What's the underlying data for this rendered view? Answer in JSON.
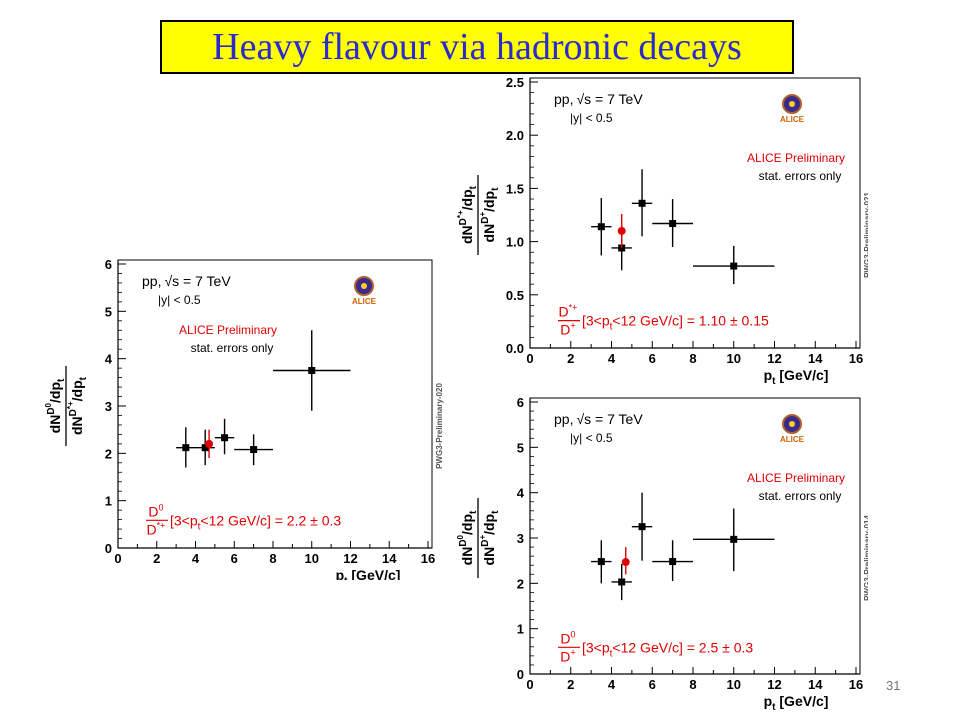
{
  "slide": {
    "title": "Heavy flavour via hadronic decays",
    "page_number": "31"
  },
  "colors": {
    "title_bg": "#ffff00",
    "title_text": "#2a2ad0",
    "red": "#e00000",
    "black": "#000000"
  },
  "chart_data": [
    {
      "type": "scatter",
      "panel": "left",
      "xlabel_main": "p",
      "xlabel_sub": "t",
      "xlabel_unit": " [GeV/c]",
      "ylabel_num": "dN",
      "ylabel_num_sup": "D",
      "ylabel_num_sup2": "0",
      "ylabel_num_tail": "/dp",
      "ylabel_num_tail_sub": "t",
      "ylabel_den": "dN",
      "ylabel_den_sup": "D",
      "ylabel_den_sup2": "*+",
      "ylabel_den_tail": "/dp",
      "ylabel_den_tail_sub": "t",
      "xlim": [
        0,
        16
      ],
      "ylim": [
        0,
        6
      ],
      "xticks": [
        "0",
        "2",
        "4",
        "6",
        "8",
        "10",
        "12",
        "14",
        "16"
      ],
      "yticks": [
        "0",
        "1",
        "2",
        "3",
        "4",
        "5",
        "6"
      ],
      "text_energy": "pp,",
      "text_sqrt": "√s = 7 TeV",
      "text_rapidity": "|y| < 0.5",
      "text_prelim": "ALICE Preliminary",
      "text_stat": "stat. errors only",
      "logo_text": "ALICE",
      "side_label": "PWG3-Preliminary-020",
      "ratio_num": "D",
      "ratio_num_sup": "0",
      "ratio_den": "D",
      "ratio_den_sup": "*+",
      "ratio_text": " [3<p",
      "ratio_text_sub": "t",
      "ratio_text_tail": "<12 GeV/c] = 2.2 ± 0.3",
      "series": [
        {
          "x": [
            3.5,
            4.5,
            5.5,
            7.0,
            10.0
          ],
          "xlow": [
            3.0,
            4.0,
            5.0,
            6.0,
            8.0
          ],
          "xhigh": [
            4.0,
            5.0,
            6.0,
            8.0,
            12.0
          ],
          "y": [
            2.12,
            2.12,
            2.33,
            2.08,
            3.75
          ],
          "ylow": [
            1.7,
            1.75,
            1.98,
            1.75,
            2.9
          ],
          "yhigh": [
            2.55,
            2.5,
            2.73,
            2.4,
            4.6
          ]
        }
      ],
      "average_point": {
        "x": 4.7,
        "y": 2.2,
        "ylow": 1.9,
        "yhigh": 2.5
      }
    },
    {
      "type": "scatter",
      "panel": "top-right",
      "xlabel_main": "p",
      "xlabel_sub": "t",
      "xlabel_unit": " [GeV/c]",
      "ylabel_num": "dN",
      "ylabel_num_sup": "D",
      "ylabel_num_sup2": "*+",
      "ylabel_num_tail": "/dp",
      "ylabel_num_tail_sub": "t",
      "ylabel_den": "dN",
      "ylabel_den_sup": "D",
      "ylabel_den_sup2": "+",
      "ylabel_den_tail": "/dp",
      "ylabel_den_tail_sub": "t",
      "xlim": [
        0,
        16
      ],
      "ylim": [
        0,
        2.5
      ],
      "xticks": [
        "0",
        "2",
        "4",
        "6",
        "8",
        "10",
        "12",
        "14",
        "16"
      ],
      "yticks": [
        "0.0",
        "0.5",
        "1.0",
        "1.5",
        "2.0",
        "2.5"
      ],
      "text_energy": "pp,",
      "text_sqrt": "√s = 7 TeV",
      "text_rapidity": "|y| < 0.5",
      "text_prelim": "ALICE Preliminary",
      "text_stat": "stat. errors only",
      "logo_text": "ALICE",
      "side_label": "PWG3-Preliminary-021",
      "ratio_num": "D",
      "ratio_num_sup": "*+",
      "ratio_den": "D",
      "ratio_den_sup": "+",
      "ratio_text": " [3<p",
      "ratio_text_sub": "t",
      "ratio_text_tail": "<12 GeV/c] = 1.10 ± 0.15",
      "series": [
        {
          "x": [
            3.5,
            4.5,
            5.5,
            7.0,
            10.0
          ],
          "xlow": [
            3.0,
            4.0,
            5.0,
            6.0,
            8.0
          ],
          "xhigh": [
            4.0,
            5.0,
            6.0,
            8.0,
            12.0
          ],
          "y": [
            1.14,
            0.94,
            1.36,
            1.17,
            0.77
          ],
          "ylow": [
            0.87,
            0.73,
            1.05,
            0.95,
            0.6
          ],
          "yhigh": [
            1.41,
            1.15,
            1.68,
            1.4,
            0.96
          ]
        }
      ],
      "average_point": {
        "x": 4.5,
        "y": 1.1,
        "ylow": 0.94,
        "yhigh": 1.26
      }
    },
    {
      "type": "scatter",
      "panel": "bottom-right",
      "xlabel_main": "p",
      "xlabel_sub": "t",
      "xlabel_unit": " [GeV/c]",
      "ylabel_num": "dN",
      "ylabel_num_sup": "D",
      "ylabel_num_sup2": "0",
      "ylabel_num_tail": "/dp",
      "ylabel_num_tail_sub": "t",
      "ylabel_den": "dN",
      "ylabel_den_sup": "D",
      "ylabel_den_sup2": "+",
      "ylabel_den_tail": "/dp",
      "ylabel_den_tail_sub": "t",
      "xlim": [
        0,
        16
      ],
      "ylim": [
        0,
        6
      ],
      "xticks": [
        "0",
        "2",
        "4",
        "6",
        "8",
        "10",
        "12",
        "14",
        "16"
      ],
      "yticks": [
        "0",
        "1",
        "2",
        "3",
        "4",
        "5",
        "6"
      ],
      "text_energy": "pp,",
      "text_sqrt": "√s = 7 TeV",
      "text_rapidity": "|y| < 0.5",
      "text_prelim": "ALICE Preliminary",
      "text_stat": "stat. errors only",
      "logo_text": "ALICE",
      "side_label": "PWG3-Preliminary-014",
      "ratio_num": "D",
      "ratio_num_sup": "0",
      "ratio_den": "D",
      "ratio_den_sup": "+",
      "ratio_text": " [3<p",
      "ratio_text_sub": "t",
      "ratio_text_tail": "<12 GeV/c] = 2.5 ± 0.3",
      "series": [
        {
          "x": [
            3.5,
            4.5,
            5.5,
            7.0,
            10.0
          ],
          "xlow": [
            3.0,
            4.0,
            5.0,
            6.0,
            8.0
          ],
          "xhigh": [
            4.0,
            5.0,
            6.0,
            8.0,
            12.0
          ],
          "y": [
            2.48,
            2.03,
            3.25,
            2.48,
            2.97
          ],
          "ylow": [
            2.0,
            1.63,
            2.5,
            2.05,
            2.27
          ],
          "yhigh": [
            2.95,
            2.43,
            4.0,
            2.95,
            3.65
          ]
        }
      ],
      "average_point": {
        "x": 4.7,
        "y": 2.47,
        "ylow": 2.2,
        "yhigh": 2.8
      }
    }
  ]
}
